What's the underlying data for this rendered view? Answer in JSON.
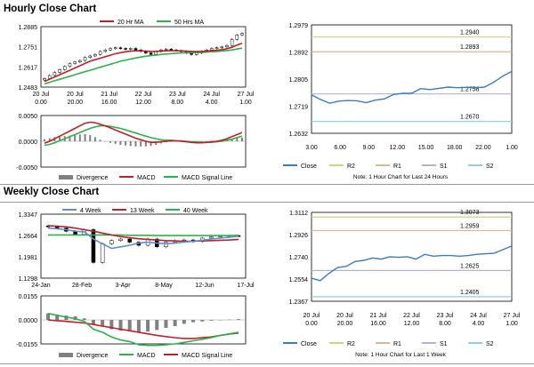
{
  "sections": {
    "hourly_title": "Hourly Close Chart",
    "weekly_title": "Weekly Close Chart"
  },
  "colors": {
    "ma_short": "#c0202a",
    "ma_long": "#2db34a",
    "wk4": "#5b8fd0",
    "wk13": "#c0202a",
    "wk40": "#2db34a",
    "close": "#3a7cbf",
    "r2": "#c8d87c",
    "r1": "#e0b48c",
    "s1": "#b8b0d8",
    "s2": "#8fd0e0",
    "divergence": "#808080"
  },
  "chart_data": [
    {
      "id": "hourly_candles",
      "type": "candlestick",
      "title": "",
      "legend": [
        "20 Hr MA",
        "50 Hrs MA"
      ],
      "y_ticks": [
        "1.2885",
        "1.2751",
        "1.2617",
        "1.2483"
      ],
      "ylim": [
        1.2483,
        1.2885
      ],
      "x_ticks": [
        "20 Jul\n0.00",
        "20 Jul\n20.00",
        "21 Jul\n16.00",
        "22 Jul\n12.00",
        "23 Jul\n8.00",
        "24 Jul\n4.00",
        "27 Jul\n1.00"
      ],
      "close": [
        1.254,
        1.256,
        1.258,
        1.26,
        1.262,
        1.264,
        1.265,
        1.266,
        1.268,
        1.269,
        1.27,
        1.272,
        1.273,
        1.274,
        1.2745,
        1.274,
        1.2735,
        1.274,
        1.273,
        1.272,
        1.271,
        1.27,
        1.272,
        1.273,
        1.2735,
        1.273,
        1.2725,
        1.272,
        1.271,
        1.27,
        1.271,
        1.272,
        1.273,
        1.274,
        1.2745,
        1.275,
        1.276,
        1.28,
        1.283,
        1.284
      ],
      "ma20": [
        1.252,
        1.2535,
        1.255,
        1.2565,
        1.258,
        1.2595,
        1.261,
        1.2625,
        1.264,
        1.2655,
        1.2665,
        1.2675,
        1.2685,
        1.2695,
        1.2705,
        1.2712,
        1.2718,
        1.2722,
        1.2724,
        1.2724,
        1.2722,
        1.272,
        1.272,
        1.2722,
        1.2724,
        1.2725,
        1.2725,
        1.2724,
        1.2722,
        1.272,
        1.2719,
        1.272,
        1.2722,
        1.2725,
        1.2728,
        1.2732,
        1.2738,
        1.2748,
        1.2762,
        1.2775
      ],
      "ma50": [
        1.2505,
        1.2515,
        1.2525,
        1.2535,
        1.2545,
        1.2555,
        1.2565,
        1.2575,
        1.2585,
        1.2595,
        1.2605,
        1.2615,
        1.2625,
        1.2635,
        1.2645,
        1.2655,
        1.2663,
        1.267,
        1.2677,
        1.2683,
        1.2688,
        1.2692,
        1.2696,
        1.27,
        1.2703,
        1.2706,
        1.2708,
        1.271,
        1.2711,
        1.2712,
        1.2713,
        1.2714,
        1.2716,
        1.2718,
        1.272,
        1.2723,
        1.2726,
        1.273,
        1.2736,
        1.2742
      ]
    },
    {
      "id": "hourly_macd",
      "type": "line+bar",
      "legend": [
        "Divergence",
        "MACD",
        "MACD Signal Line"
      ],
      "y_ticks": [
        "0.0050",
        "0.0000",
        "-0.0050"
      ],
      "ylim": [
        -0.005,
        0.005
      ],
      "macd": [
        -0.0004,
        0.0,
        0.0005,
        0.001,
        0.0015,
        0.002,
        0.0025,
        0.003,
        0.0035,
        0.0037,
        0.0036,
        0.0033,
        0.003,
        0.0026,
        0.0022,
        0.0018,
        0.0014,
        0.001,
        0.0006,
        0.0003,
        0.0,
        -0.0002,
        -0.0002,
        -0.0001,
        0.0,
        0.0001,
        0.0001,
        0.0,
        -0.0001,
        -0.0002,
        -0.0003,
        -0.0003,
        -0.0002,
        -0.0001,
        0.0,
        0.0002,
        0.0005,
        0.0009,
        0.0013,
        0.0017
      ],
      "signal": [
        -0.0008,
        -0.0006,
        -0.0003,
        0.0001,
        0.0005,
        0.0009,
        0.0013,
        0.0017,
        0.0021,
        0.0025,
        0.0028,
        0.003,
        0.003,
        0.0029,
        0.0027,
        0.0025,
        0.0022,
        0.0019,
        0.0016,
        0.0013,
        0.001,
        0.0007,
        0.0005,
        0.0003,
        0.0002,
        0.0002,
        0.0001,
        0.0001,
        0.0,
        -0.0001,
        -0.0001,
        -0.0002,
        -0.0002,
        -0.0002,
        -0.0001,
        0.0,
        0.0002,
        0.0004,
        0.0007,
        0.001
      ]
    },
    {
      "id": "hourly_close",
      "type": "line",
      "y_ticks": [
        "1.2979",
        "1.2892",
        "1.2805",
        "1.2719",
        "1.2632"
      ],
      "ylim": [
        1.2632,
        1.2979
      ],
      "x_ticks": [
        "3.00",
        "6.00",
        "9.00",
        "12.00",
        "15.00",
        "18.00",
        "22.00",
        "1.00"
      ],
      "close": [
        1.2755,
        1.274,
        1.2728,
        1.2735,
        1.2737,
        1.2736,
        1.273,
        1.2738,
        1.2742,
        1.2756,
        1.276,
        1.276,
        1.2775,
        1.2772,
        1.2776,
        1.278,
        1.2778,
        1.2779,
        1.2778,
        1.278,
        1.2795,
        1.2815,
        1.283
      ],
      "levels": {
        "R2": 1.294,
        "R1": 1.2893,
        "S1": 1.2758,
        "S2": 1.267
      },
      "level_labels": {
        "R2": "1.2940",
        "R1": "1.2893",
        "S1": "1.2758",
        "S2": "1.2670"
      },
      "legend": [
        "Close",
        "R2",
        "R1",
        "S1",
        "S2"
      ],
      "note": "Note: 1 Hour Chart for Last 24 Hours"
    },
    {
      "id": "weekly_candles",
      "type": "candlestick",
      "legend": [
        "4 Week",
        "13 Week",
        "40 Week"
      ],
      "y_ticks": [
        "1.3347",
        "1.2664",
        "1.1981",
        "1.1298"
      ],
      "ylim": [
        1.1298,
        1.3347
      ],
      "x_ticks": [
        "24-Jan",
        "28-Feb",
        "3-Apr",
        "8-May",
        "12-Jun",
        "17-Jul"
      ],
      "close": [
        1.295,
        1.29,
        1.28,
        1.27,
        1.285,
        1.18,
        1.24,
        1.25,
        1.255,
        1.245,
        1.235,
        1.255,
        1.23,
        1.245,
        1.25,
        1.252,
        1.247,
        1.258,
        1.262,
        1.264,
        1.266,
        1.265
      ],
      "wk4": [
        1.29,
        1.288,
        1.285,
        1.28,
        1.278,
        1.255,
        1.24,
        1.225,
        1.23,
        1.235,
        1.242,
        1.245,
        1.242,
        1.24,
        1.242,
        1.245,
        1.248,
        1.251,
        1.255,
        1.258,
        1.261,
        1.264
      ],
      "wk13": [
        1.298,
        1.296,
        1.294,
        1.29,
        1.285,
        1.28,
        1.274,
        1.268,
        1.263,
        1.259,
        1.256,
        1.254,
        1.252,
        1.25,
        1.249,
        1.248,
        1.248,
        1.249,
        1.25,
        1.251,
        1.252,
        1.254
      ],
      "wk40": [
        1.268,
        1.268,
        1.268,
        1.268,
        1.268,
        1.268,
        1.268,
        1.268,
        1.268,
        1.267,
        1.267,
        1.267,
        1.266,
        1.266,
        1.266,
        1.266,
        1.266,
        1.266,
        1.266,
        1.266,
        1.266,
        1.267
      ]
    },
    {
      "id": "weekly_macd",
      "type": "line+bar",
      "legend": [
        "Divergence",
        "MACD",
        "MACD Signal Line"
      ],
      "y_ticks": [
        "0.0155",
        "0.0000",
        "-0.0155"
      ],
      "ylim": [
        -0.0155,
        0.0155
      ],
      "macd": [
        0.0042,
        0.003,
        0.0018,
        0.0008,
        -0.001,
        -0.006,
        -0.008,
        -0.011,
        -0.013,
        -0.014,
        -0.016,
        -0.0165,
        -0.0165,
        -0.016,
        -0.0155,
        -0.0145,
        -0.0135,
        -0.0125,
        -0.0115,
        -0.01,
        -0.009,
        -0.008
      ],
      "signal": [
        0.0,
        -0.0005,
        -0.001,
        -0.0015,
        -0.002,
        -0.003,
        -0.004,
        -0.005,
        -0.006,
        -0.007,
        -0.008,
        -0.009,
        -0.01,
        -0.0108,
        -0.0115,
        -0.012,
        -0.012,
        -0.0115,
        -0.011,
        -0.01,
        -0.0092,
        -0.0085
      ]
    },
    {
      "id": "weekly_close",
      "type": "line",
      "y_ticks": [
        "1.3112",
        "1.2926",
        "1.2740",
        "1.2554",
        "1.2367"
      ],
      "ylim": [
        1.2367,
        1.3112
      ],
      "x_ticks": [
        "20 Jul\n0.00",
        "20 Jul\n20.00",
        "21 Jul\n16.00",
        "22 Jul\n12.00",
        "23 Jul\n8.00",
        "24 Jul\n4.00",
        "27 Jul\n1.00"
      ],
      "close": [
        1.256,
        1.254,
        1.26,
        1.265,
        1.266,
        1.27,
        1.271,
        1.273,
        1.272,
        1.274,
        1.2735,
        1.274,
        1.272,
        1.276,
        1.2745,
        1.275,
        1.275,
        1.2745,
        1.275,
        1.276,
        1.2765,
        1.277,
        1.28,
        1.283
      ],
      "levels": {
        "R2": 1.3073,
        "R1": 1.2959,
        "S1": 1.2625,
        "S2": 1.2405
      },
      "level_labels": {
        "R2": "1.3073",
        "R1": "1.2959",
        "S1": "1.2625",
        "S2": "1.2405"
      },
      "legend": [
        "Close",
        "R2",
        "R1",
        "S1",
        "S2"
      ],
      "note": "Note: 1 Hour Chart for Last 1 Week"
    }
  ]
}
